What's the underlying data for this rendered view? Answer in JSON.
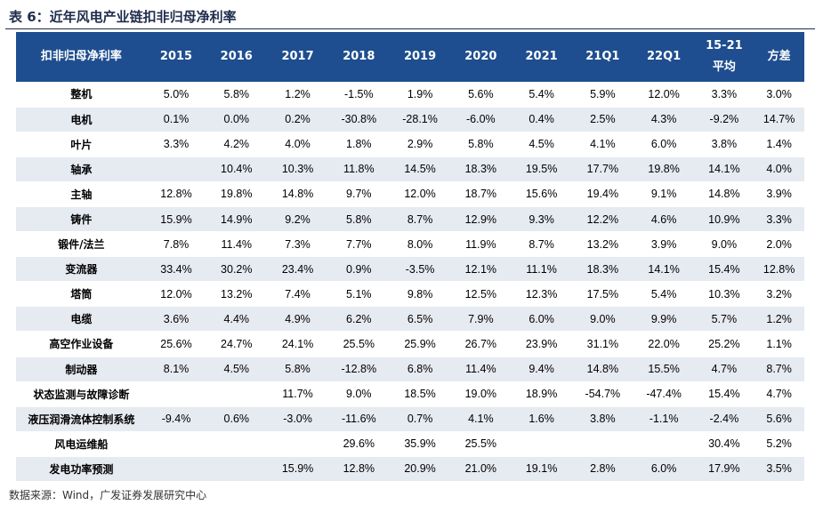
{
  "title": "表 6：近年风电产业链扣非归母净利率",
  "source": "数据来源：Wind，广发证券发展研究中心",
  "table": {
    "headers": [
      "扣非归母净利率",
      "2015",
      "2016",
      "2017",
      "2018",
      "2019",
      "2020",
      "2021",
      "21Q1",
      "22Q1",
      "15-21\n平均",
      "方差"
    ],
    "rows": [
      [
        "整机",
        "5.0%",
        "5.8%",
        "1.2%",
        "-1.5%",
        "1.9%",
        "5.6%",
        "5.4%",
        "5.9%",
        "12.0%",
        "3.3%",
        "3.0%"
      ],
      [
        "电机",
        "0.1%",
        "0.0%",
        "0.2%",
        "-30.8%",
        "-28.1%",
        "-6.0%",
        "0.4%",
        "2.5%",
        "4.3%",
        "-9.2%",
        "14.7%"
      ],
      [
        "叶片",
        "3.3%",
        "4.2%",
        "4.0%",
        "1.8%",
        "2.9%",
        "5.8%",
        "4.5%",
        "4.1%",
        "6.0%",
        "3.8%",
        "1.4%"
      ],
      [
        "轴承",
        "",
        "10.4%",
        "10.3%",
        "11.8%",
        "14.5%",
        "18.3%",
        "19.5%",
        "17.7%",
        "19.8%",
        "14.1%",
        "4.0%"
      ],
      [
        "主轴",
        "12.8%",
        "19.8%",
        "14.8%",
        "9.7%",
        "12.0%",
        "18.7%",
        "15.6%",
        "19.4%",
        "9.1%",
        "14.8%",
        "3.9%"
      ],
      [
        "铸件",
        "15.9%",
        "14.9%",
        "9.2%",
        "5.8%",
        "8.7%",
        "12.9%",
        "9.3%",
        "12.2%",
        "4.6%",
        "10.9%",
        "3.3%"
      ],
      [
        "锻件/法兰",
        "7.8%",
        "11.4%",
        "7.3%",
        "7.7%",
        "8.0%",
        "11.9%",
        "8.7%",
        "13.2%",
        "3.9%",
        "9.0%",
        "2.0%"
      ],
      [
        "变流器",
        "33.4%",
        "30.2%",
        "23.4%",
        "0.9%",
        "-3.5%",
        "12.1%",
        "11.1%",
        "18.3%",
        "14.1%",
        "15.4%",
        "12.8%"
      ],
      [
        "塔筒",
        "12.0%",
        "13.2%",
        "7.4%",
        "5.1%",
        "9.8%",
        "12.5%",
        "12.3%",
        "17.5%",
        "5.4%",
        "10.3%",
        "3.2%"
      ],
      [
        "电缆",
        "3.6%",
        "4.4%",
        "4.9%",
        "6.2%",
        "6.5%",
        "7.9%",
        "6.0%",
        "9.0%",
        "9.9%",
        "5.7%",
        "1.2%"
      ],
      [
        "高空作业设备",
        "25.6%",
        "24.7%",
        "24.1%",
        "25.5%",
        "25.9%",
        "26.7%",
        "23.9%",
        "31.1%",
        "22.0%",
        "25.2%",
        "1.1%"
      ],
      [
        "制动器",
        "8.1%",
        "4.5%",
        "5.8%",
        "-12.8%",
        "6.8%",
        "11.4%",
        "9.4%",
        "14.8%",
        "15.5%",
        "4.7%",
        "8.7%"
      ],
      [
        "状态监测与故障诊断",
        "",
        "",
        "11.7%",
        "9.0%",
        "18.5%",
        "19.0%",
        "18.9%",
        "-54.7%",
        "-47.4%",
        "15.4%",
        "4.7%"
      ],
      [
        "液压润滑流体控制系统",
        "-9.4%",
        "0.6%",
        "-3.0%",
        "-11.6%",
        "0.7%",
        "4.1%",
        "1.6%",
        "3.8%",
        "-1.1%",
        "-2.4%",
        "5.6%"
      ],
      [
        "风电运维船",
        "",
        "",
        "",
        "29.6%",
        "35.9%",
        "25.5%",
        "",
        "",
        "",
        "30.4%",
        "5.2%"
      ],
      [
        "发电功率预测",
        "",
        "",
        "15.9%",
        "12.8%",
        "20.9%",
        "21.0%",
        "19.1%",
        "2.8%",
        "6.0%",
        "17.9%",
        "3.5%"
      ]
    ]
  },
  "colors": {
    "header_bg": "#1e4e8f",
    "header_text": "#ffffff",
    "stripe": "#e6eaf1",
    "title_text": "#1f2d4d"
  }
}
